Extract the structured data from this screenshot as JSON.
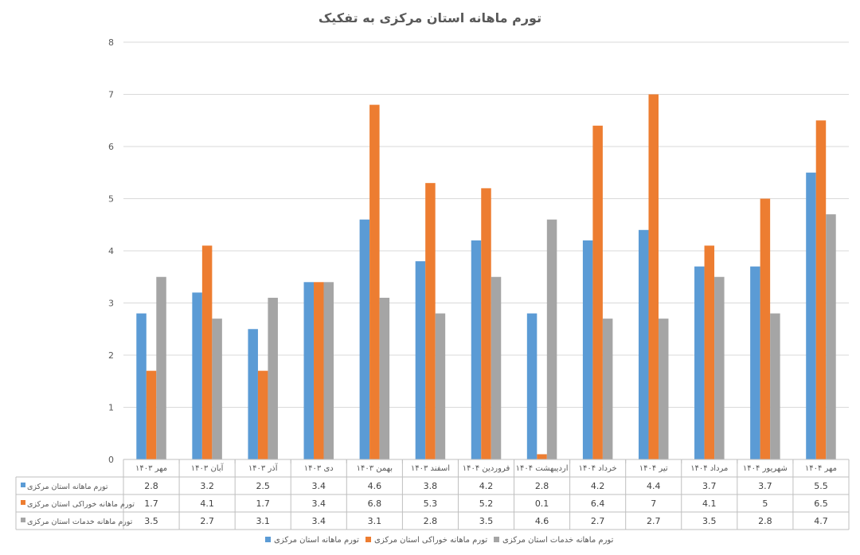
{
  "chart_data": {
    "type": "bar",
    "title": "تورم ماهانه استان مرکزی به تفکیک",
    "categories": [
      "مهر ۱۴۰۳",
      "آبان ۱۴۰۳",
      "آذر ۱۴۰۳",
      "دی ۱۴۰۳",
      "بهمن ۱۴۰۳",
      "اسفند ۱۴۰۳",
      "فروردین ۱۴۰۴",
      "اردیبهشت ۱۴۰۴",
      "خرداد ۱۴۰۴",
      "تیر ۱۴۰۴",
      "مرداد ۱۴۰۴",
      "شهریور ۱۴۰۴",
      "مهر ۱۴۰۴"
    ],
    "series": [
      {
        "name": "تورم ماهانه استان مرکزی",
        "color": "#5B9BD5",
        "values": [
          2.8,
          3.2,
          2.5,
          3.4,
          4.6,
          3.8,
          4.2,
          2.8,
          4.2,
          4.4,
          3.7,
          3.7,
          5.5
        ]
      },
      {
        "name": "تورم ماهانه خوراکی استان مرکزی",
        "color": "#ED7D31",
        "values": [
          1.7,
          4.1,
          1.7,
          3.4,
          6.8,
          5.3,
          5.2,
          0.1,
          6.4,
          7,
          4.1,
          5,
          6.5
        ]
      },
      {
        "name": "تورم ماهانه خدمات استان مرکزی",
        "color": "#A5A5A5",
        "values": [
          3.5,
          2.7,
          3.1,
          3.4,
          3.1,
          2.8,
          3.5,
          4.6,
          2.7,
          2.7,
          3.5,
          2.8,
          4.7
        ]
      }
    ],
    "ylim": [
      0,
      8
    ],
    "yticks": [
      0,
      1,
      2,
      3,
      4,
      5,
      6,
      7,
      8
    ],
    "grid": true,
    "legend_position": "bottom",
    "data_table": true
  }
}
